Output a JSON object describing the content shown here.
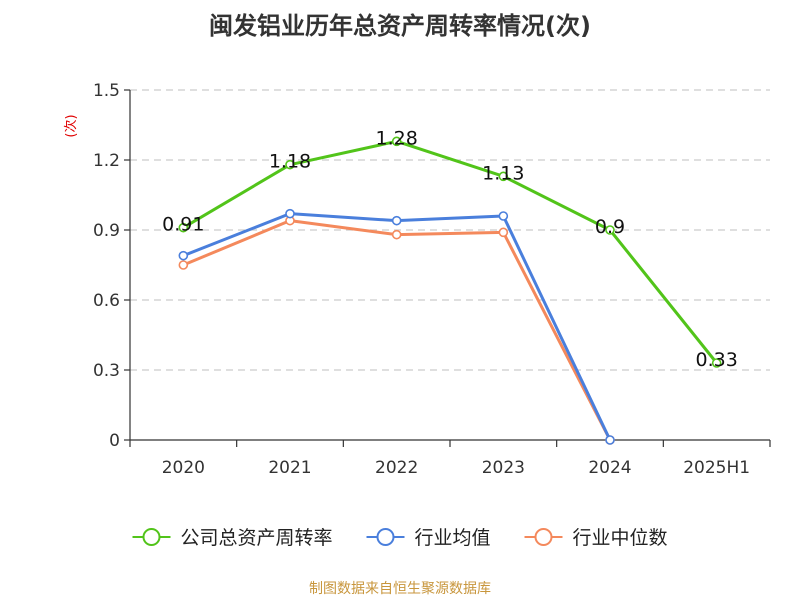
{
  "title": "闽发铝业历年总资产周转率情况(次)",
  "source": "制图数据来自恒生聚源数据库",
  "chart_data": {
    "type": "line",
    "title": "闽发铝业历年总资产周转率情况(次)",
    "ylabel": "(次)",
    "xlabel": "",
    "categories": [
      "2020",
      "2021",
      "2022",
      "2023",
      "2024",
      "2025H1"
    ],
    "ylim": [
      0,
      1.5
    ],
    "yticks": [
      0,
      0.3,
      0.6,
      0.9,
      1.2,
      1.5
    ],
    "ytick_labels": [
      "0",
      "0.3",
      "0.6",
      "0.9",
      "1.2",
      "1.5"
    ],
    "grid": true,
    "legend_position": "bottom",
    "series": [
      {
        "name": "公司总资产周转率",
        "color": "#52c41a",
        "values": [
          0.91,
          1.18,
          1.28,
          1.13,
          0.9,
          0.33
        ],
        "labels": [
          "0.91",
          "1.18",
          "1.28",
          "1.13",
          "0.9",
          "0.33"
        ]
      },
      {
        "name": "行业均值",
        "color": "#4a7fdc",
        "values": [
          0.79,
          0.97,
          0.94,
          0.96,
          0.0,
          null
        ]
      },
      {
        "name": "行业中位数",
        "color": "#f4895c",
        "values": [
          0.75,
          0.94,
          0.88,
          0.89,
          0.0,
          null
        ]
      }
    ]
  }
}
